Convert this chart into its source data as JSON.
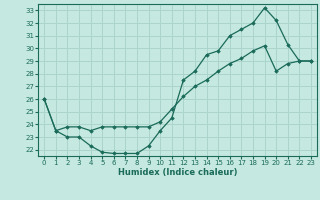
{
  "xlabel": "Humidex (Indice chaleur)",
  "xlim": [
    -0.5,
    23.5
  ],
  "ylim": [
    21.5,
    33.5
  ],
  "xticks": [
    0,
    1,
    2,
    3,
    4,
    5,
    6,
    7,
    8,
    9,
    10,
    11,
    12,
    13,
    14,
    15,
    16,
    17,
    18,
    19,
    20,
    21,
    22,
    23
  ],
  "yticks": [
    22,
    23,
    24,
    25,
    26,
    27,
    28,
    29,
    30,
    31,
    32,
    33
  ],
  "bg_color": "#c5e8e0",
  "line_color": "#1a6b5a",
  "grid_color": "#aad4cc",
  "line1_x": [
    0,
    1,
    2,
    3,
    4,
    5,
    6,
    7,
    8,
    9,
    10,
    11,
    12,
    13,
    14,
    15,
    16,
    17,
    18,
    19,
    20,
    21,
    22,
    23
  ],
  "line1_y": [
    26.0,
    23.5,
    23.0,
    23.0,
    22.3,
    21.8,
    21.7,
    21.7,
    21.7,
    22.3,
    23.5,
    24.5,
    27.5,
    28.2,
    29.5,
    29.8,
    31.0,
    31.5,
    32.0,
    33.2,
    32.2,
    30.3,
    29.0,
    29.0
  ],
  "line2_x": [
    0,
    1,
    2,
    3,
    4,
    5,
    6,
    7,
    8,
    9,
    10,
    11,
    12,
    13,
    14,
    15,
    16,
    17,
    18,
    19,
    20,
    21,
    22,
    23
  ],
  "line2_y": [
    26.0,
    23.5,
    23.8,
    23.8,
    23.5,
    23.8,
    23.8,
    23.8,
    23.8,
    23.8,
    24.2,
    25.2,
    26.2,
    27.0,
    27.5,
    28.2,
    28.8,
    29.2,
    29.8,
    30.2,
    28.2,
    28.8,
    29.0,
    29.0
  ]
}
